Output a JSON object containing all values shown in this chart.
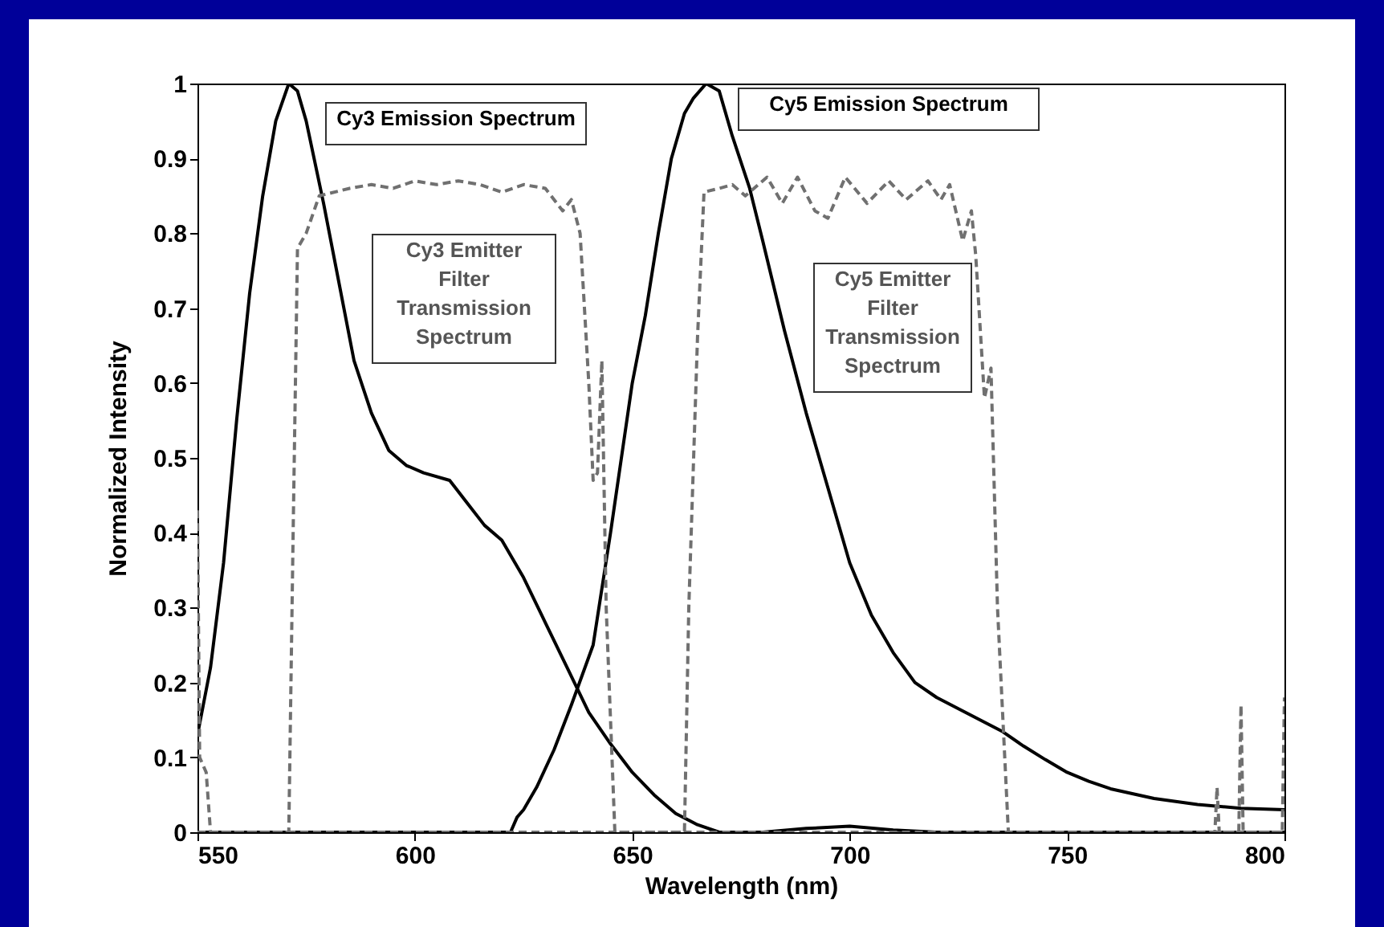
{
  "chart_data": {
    "type": "line",
    "xlabel": "Wavelength (nm)",
    "ylabel": "Normalized Intensity",
    "xlim": [
      550,
      800
    ],
    "xticks": [
      550,
      600,
      650,
      700,
      750,
      800
    ],
    "ylim": [
      0,
      1
    ],
    "yticks": [
      0,
      0.1,
      0.2,
      0.3,
      0.4,
      0.5,
      0.6,
      0.7,
      0.8,
      0.9,
      1
    ],
    "grid": false,
    "legend": false,
    "marker": "none",
    "series": [
      {
        "name": "Cy3 Emission Spectrum",
        "color": "#000000",
        "line_style": "solid",
        "x": [
          550,
          553,
          556,
          559,
          562,
          565,
          568,
          571,
          573,
          575,
          579,
          583,
          586,
          590,
          594,
          598,
          602,
          608,
          612,
          616,
          620,
          625,
          630,
          635,
          640,
          645,
          650,
          655,
          660,
          665,
          670,
          680,
          690,
          700,
          710,
          720,
          800
        ],
        "values": [
          0.13,
          0.22,
          0.36,
          0.55,
          0.72,
          0.85,
          0.95,
          1.0,
          0.99,
          0.95,
          0.84,
          0.72,
          0.63,
          0.56,
          0.51,
          0.49,
          0.48,
          0.47,
          0.44,
          0.41,
          0.39,
          0.34,
          0.28,
          0.22,
          0.16,
          0.118,
          0.08,
          0.05,
          0.025,
          0.01,
          0.0,
          0.0,
          0.005,
          0.008,
          0.003,
          0.0,
          0.0
        ]
      },
      {
        "name": "Cy5 Emission Spectrum",
        "color": "#000000",
        "line_style": "solid",
        "x": [
          550,
          622,
          623.5,
          625,
          628,
          632,
          636,
          641,
          645,
          650,
          653,
          656,
          659,
          662,
          664,
          667,
          670,
          673,
          677,
          680,
          685,
          690,
          695,
          700,
          705,
          710,
          715,
          720,
          725,
          730,
          735,
          740,
          745,
          750,
          755,
          760,
          770,
          780,
          790,
          800
        ],
        "values": [
          0.0,
          0.0,
          0.02,
          0.03,
          0.06,
          0.11,
          0.17,
          0.25,
          0.4,
          0.6,
          0.69,
          0.8,
          0.9,
          0.96,
          0.98,
          1.0,
          0.99,
          0.93,
          0.86,
          0.79,
          0.67,
          0.56,
          0.46,
          0.36,
          0.29,
          0.24,
          0.2,
          0.18,
          0.165,
          0.15,
          0.135,
          0.115,
          0.097,
          0.08,
          0.068,
          0.058,
          0.045,
          0.037,
          0.032,
          0.03
        ]
      },
      {
        "name": "Cy3 Emitter Filter Transmission Spectrum",
        "color": "#707070",
        "line_style": "dashed",
        "x": [
          550,
          550.5,
          552,
          553,
          571,
          572,
          573,
          575,
          578,
          585,
          590,
          595,
          600,
          605,
          610,
          615,
          620,
          625,
          630,
          634,
          636,
          638,
          640,
          641,
          642,
          643,
          644,
          646,
          800
        ],
        "values": [
          0.43,
          0.1,
          0.08,
          0.0,
          0.0,
          0.4,
          0.78,
          0.8,
          0.85,
          0.86,
          0.865,
          0.86,
          0.87,
          0.865,
          0.87,
          0.865,
          0.855,
          0.865,
          0.86,
          0.83,
          0.845,
          0.8,
          0.6,
          0.47,
          0.48,
          0.63,
          0.3,
          0.0,
          0.0
        ]
      },
      {
        "name": "Cy5 Emitter Filter Transmission Spectrum",
        "color": "#707070",
        "line_style": "dashed",
        "x": [
          550,
          662,
          663,
          665,
          666.5,
          670,
          673,
          676,
          678,
          681,
          684.5,
          688,
          692,
          695,
          699,
          704,
          709,
          713,
          718,
          721,
          723,
          726,
          728,
          729,
          731,
          732.5,
          734,
          736.5,
          784,
          784.5,
          785,
          789.5,
          790,
          790.5,
          799.5,
          800
        ],
        "values": [
          0.0,
          0.0,
          0.3,
          0.66,
          0.855,
          0.86,
          0.865,
          0.85,
          0.86,
          0.875,
          0.84,
          0.875,
          0.83,
          0.82,
          0.875,
          0.84,
          0.87,
          0.845,
          0.87,
          0.845,
          0.865,
          0.79,
          0.83,
          0.77,
          0.58,
          0.62,
          0.3,
          0.0,
          0.0,
          0.06,
          0.0,
          0.0,
          0.17,
          0.0,
          0.0,
          0.18
        ]
      }
    ]
  }
}
